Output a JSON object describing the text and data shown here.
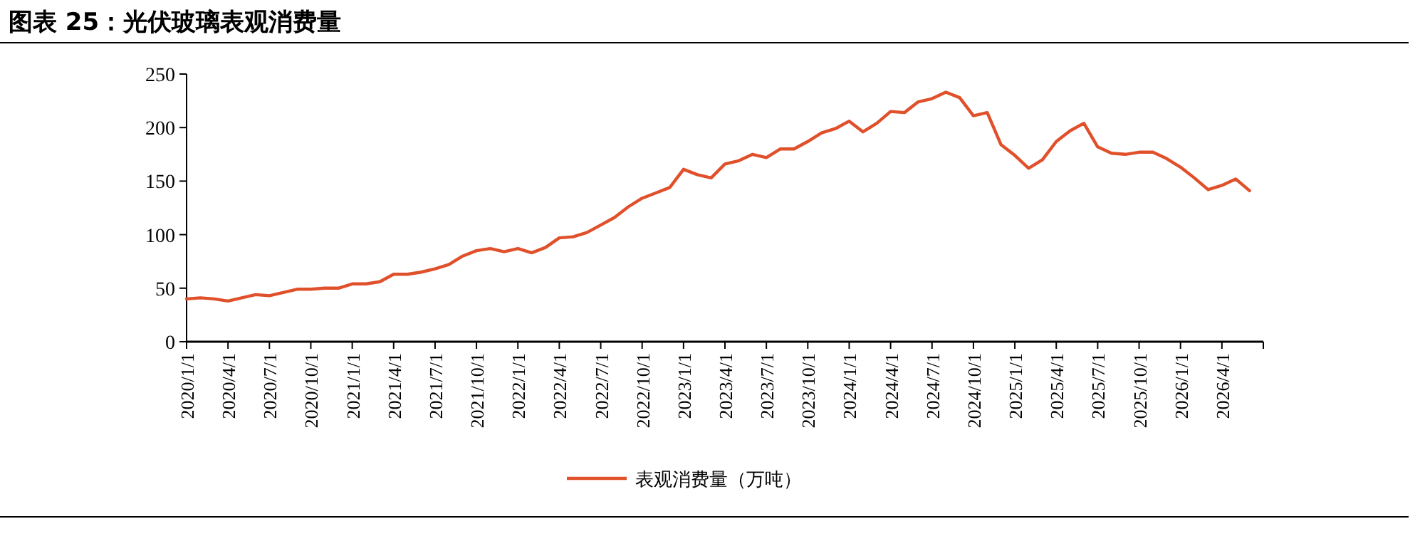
{
  "chart_data": {
    "type": "line",
    "title": "图表 25：光伏玻璃表观消费量",
    "x": [
      "2020-01",
      "2020-02",
      "2020-03",
      "2020-04",
      "2020-05",
      "2020-06",
      "2020-07",
      "2020-08",
      "2020-09",
      "2020-10",
      "2020-11",
      "2020-12",
      "2021-01",
      "2021-02",
      "2021-03",
      "2021-04",
      "2021-05",
      "2021-06",
      "2021-07",
      "2021-08",
      "2021-09",
      "2021-10",
      "2021-11",
      "2021-12",
      "2022-01",
      "2022-02",
      "2022-03",
      "2022-04",
      "2022-05",
      "2022-06",
      "2022-07",
      "2022-08",
      "2022-09",
      "2022-10",
      "2022-11",
      "2022-12",
      "2023-01",
      "2023-02",
      "2023-03",
      "2023-04",
      "2023-05",
      "2023-06",
      "2023-07",
      "2023-08",
      "2023-09",
      "2023-10",
      "2023-11",
      "2023-12",
      "2024-01",
      "2024-02",
      "2024-03",
      "2024-04",
      "2024-05",
      "2024-06",
      "2024-07",
      "2024-08",
      "2024-09",
      "2024-10",
      "2024-11",
      "2024-12",
      "2025-01",
      "2025-02",
      "2025-03",
      "2025-04",
      "2025-05",
      "2025-06",
      "2025-07",
      "2025-08",
      "2025-09",
      "2025-10",
      "2025-11",
      "2025-12",
      "2026-01",
      "2026-02",
      "2026-03",
      "2026-04",
      "2026-05",
      "2026-06"
    ],
    "series": [
      {
        "name": "表观消费量（万吨）",
        "color": "#e0502a",
        "values": [
          40,
          41,
          40,
          38,
          41,
          44,
          43,
          46,
          49,
          49,
          50,
          50,
          54,
          54,
          56,
          63,
          63,
          65,
          68,
          72,
          80,
          85,
          87,
          84,
          87,
          83,
          88,
          97,
          98,
          102,
          109,
          116,
          126,
          134,
          139,
          144,
          161,
          156,
          153,
          166,
          169,
          175,
          172,
          180,
          180,
          187,
          195,
          199,
          206,
          196,
          204,
          215,
          214,
          224,
          227,
          233,
          228,
          211,
          214,
          184,
          174,
          162,
          170,
          187,
          197,
          204,
          182,
          176,
          175,
          177,
          177,
          171,
          163,
          153,
          142,
          146,
          152,
          141
        ]
      }
    ],
    "xlim": [
      "2020-01",
      "2026-07"
    ],
    "xticks": [
      {
        "value": "2020-01",
        "label": "2020/1/1"
      },
      {
        "value": "2020-04",
        "label": "2020/4/1"
      },
      {
        "value": "2020-07",
        "label": "2020/7/1"
      },
      {
        "value": "2020-10",
        "label": "2020/10/1"
      },
      {
        "value": "2021-01",
        "label": "2021/1/1"
      },
      {
        "value": "2021-04",
        "label": "2021/4/1"
      },
      {
        "value": "2021-07",
        "label": "2021/7/1"
      },
      {
        "value": "2021-10",
        "label": "2021/10/1"
      },
      {
        "value": "2022-01",
        "label": "2022/1/1"
      },
      {
        "value": "2022-04",
        "label": "2022/4/1"
      },
      {
        "value": "2022-07",
        "label": "2022/7/1"
      },
      {
        "value": "2022-10",
        "label": "2022/10/1"
      },
      {
        "value": "2023-01",
        "label": "2023/1/1"
      },
      {
        "value": "2023-04",
        "label": "2023/4/1"
      },
      {
        "value": "2023-07",
        "label": "2023/7/1"
      },
      {
        "value": "2023-10",
        "label": "2023/10/1"
      },
      {
        "value": "2024-01",
        "label": "2024/1/1"
      },
      {
        "value": "2024-04",
        "label": "2024/4/1"
      },
      {
        "value": "2024-07",
        "label": "2024/7/1"
      },
      {
        "value": "2024-10",
        "label": "2024/10/1"
      },
      {
        "value": "2025-01",
        "label": "2025/1/1"
      },
      {
        "value": "2025-04",
        "label": "2025/4/1"
      },
      {
        "value": "2025-07",
        "label": "2025/7/1"
      },
      {
        "value": "2025-10",
        "label": "2025/10/1"
      },
      {
        "value": "2026-01",
        "label": "2026/1/1"
      },
      {
        "value": "2026-04",
        "label": "2026/4/1"
      },
      {
        "value": "2026-07",
        "label": null
      }
    ],
    "ylim": [
      0,
      250
    ],
    "yticks": [
      0,
      50,
      100,
      150,
      200,
      250
    ],
    "grid": false,
    "legend": "bottom",
    "marker": "none",
    "line_style": "solid"
  }
}
